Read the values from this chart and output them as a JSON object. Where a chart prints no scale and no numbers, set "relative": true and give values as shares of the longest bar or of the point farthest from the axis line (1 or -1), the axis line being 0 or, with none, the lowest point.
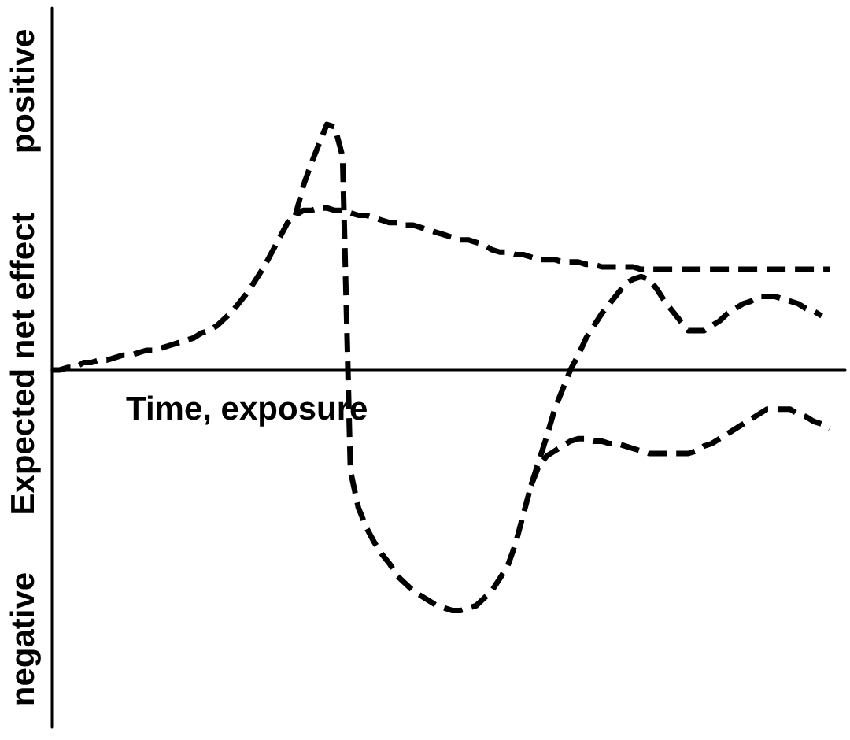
{
  "chart_data": {
    "type": "line",
    "relative": true,
    "xlabel": "Time, exposure",
    "ylabel": "Expected net effect",
    "annotations": [
      "positive",
      "negative"
    ],
    "line_style": "dashed",
    "categories": [
      null,
      null,
      null,
      null,
      null,
      null,
      null,
      null,
      null,
      null,
      null,
      null,
      null,
      null,
      null,
      null,
      null,
      null,
      null,
      null,
      null,
      null,
      null,
      null,
      null,
      null,
      null,
      null,
      null,
      null,
      null,
      null,
      null,
      null,
      null,
      null,
      null,
      null,
      null,
      null,
      null,
      null,
      null,
      null,
      null,
      null,
      null,
      null,
      null,
      null,
      null,
      null,
      null,
      null,
      null,
      null,
      null,
      null,
      null,
      null,
      null,
      null,
      null,
      null,
      null,
      null,
      null,
      null,
      null,
      null,
      null,
      null,
      null,
      null,
      null,
      null,
      null,
      null,
      null,
      null,
      null,
      null,
      null,
      null,
      null,
      null,
      null,
      null,
      null,
      null,
      null,
      null,
      null,
      null,
      null,
      null,
      null,
      null,
      null,
      null,
      null,
      null
    ],
    "series": [
      {
        "color": "#000000",
        "values": [
          0,
          0,
          0.01,
          0.01,
          0.03,
          0.03,
          0.04,
          0.04,
          0.05,
          0.06,
          0.06,
          0.07,
          0.08,
          0.08,
          0.09,
          0.1,
          0.11,
          0.12,
          0.13,
          0.15,
          0.16,
          0.18,
          0.21,
          0.24,
          0.28,
          0.32,
          0.37,
          0.42,
          0.48,
          0.54,
          0.6,
          0.63,
          0.65,
          0.65,
          0.66,
          0.66,
          0.65,
          0.65,
          0.64,
          0.63,
          0.63,
          0.62,
          0.61,
          0.6,
          0.6,
          0.59,
          0.59,
          0.58,
          0.57,
          0.56,
          0.55,
          0.54,
          0.53,
          0.53,
          0.52,
          0.51,
          0.49,
          0.48,
          0.48,
          0.47,
          0.47,
          0.46,
          0.45,
          0.45,
          0.45,
          0.44,
          0.44,
          0.44,
          0.43,
          0.43,
          0.42,
          0.42,
          0.42,
          0.42,
          0.42,
          0.41,
          0.41,
          0.41,
          0.41,
          0.41,
          0.41,
          0.41,
          0.41,
          0.41,
          0.41,
          0.41,
          0.41,
          0.41,
          0.41,
          0.41,
          0.41,
          0.41,
          0.41,
          0.41,
          0.41,
          0.41,
          0.41,
          0.41,
          0.41,
          0.41,
          null,
          null
        ]
      },
      {
        "color": "#000000",
        "values": [
          null,
          null,
          null,
          null,
          null,
          null,
          null,
          null,
          null,
          null,
          null,
          null,
          null,
          null,
          null,
          null,
          null,
          null,
          null,
          null,
          null,
          null,
          null,
          null,
          null,
          null,
          null,
          null,
          null,
          null,
          null,
          0.63,
          0.75,
          0.84,
          0.92,
          1,
          0.99,
          0.87,
          -0.41,
          -0.56,
          -0.64,
          -0.7,
          -0.75,
          -0.79,
          -0.84,
          -0.87,
          -0.9,
          -0.92,
          -0.94,
          -0.96,
          -0.97,
          -0.98,
          -0.98,
          -0.97,
          -0.96,
          -0.93,
          -0.9,
          -0.85,
          -0.8,
          -0.71,
          -0.59,
          -0.47,
          -0.37,
          -0.27,
          -0.16,
          -0.08,
          0,
          0.06,
          0.13,
          0.18,
          0.23,
          0.27,
          0.31,
          0.35,
          0.37,
          0.38,
          0.37,
          0.33,
          0.28,
          0.24,
          0.2,
          0.16,
          0.16,
          0.16,
          0.18,
          0.2,
          0.23,
          0.25,
          0.27,
          0.28,
          0.3,
          0.3,
          0.3,
          0.29,
          0.28,
          0.27,
          0.25,
          0.24,
          0.22,
          null,
          null,
          null
        ]
      },
      {
        "color": "#000000",
        "values": [
          null,
          null,
          null,
          null,
          null,
          null,
          null,
          null,
          null,
          null,
          null,
          null,
          null,
          null,
          null,
          null,
          null,
          null,
          null,
          null,
          null,
          null,
          null,
          null,
          null,
          null,
          null,
          null,
          null,
          null,
          null,
          null,
          null,
          null,
          null,
          null,
          null,
          null,
          null,
          null,
          null,
          null,
          null,
          null,
          null,
          null,
          null,
          null,
          null,
          null,
          null,
          null,
          null,
          null,
          null,
          null,
          null,
          null,
          null,
          null,
          null,
          -0.47,
          -0.39,
          -0.35,
          -0.33,
          -0.31,
          -0.29,
          -0.28,
          -0.28,
          -0.29,
          -0.29,
          -0.3,
          -0.3,
          -0.31,
          -0.32,
          -0.33,
          -0.34,
          -0.34,
          -0.34,
          -0.34,
          -0.34,
          -0.34,
          -0.33,
          -0.31,
          -0.3,
          -0.28,
          -0.26,
          -0.24,
          -0.22,
          -0.2,
          -0.18,
          -0.16,
          -0.16,
          -0.16,
          -0.16,
          -0.18,
          -0.19,
          -0.21,
          -0.22,
          -0.24,
          null,
          null
        ]
      }
    ]
  }
}
